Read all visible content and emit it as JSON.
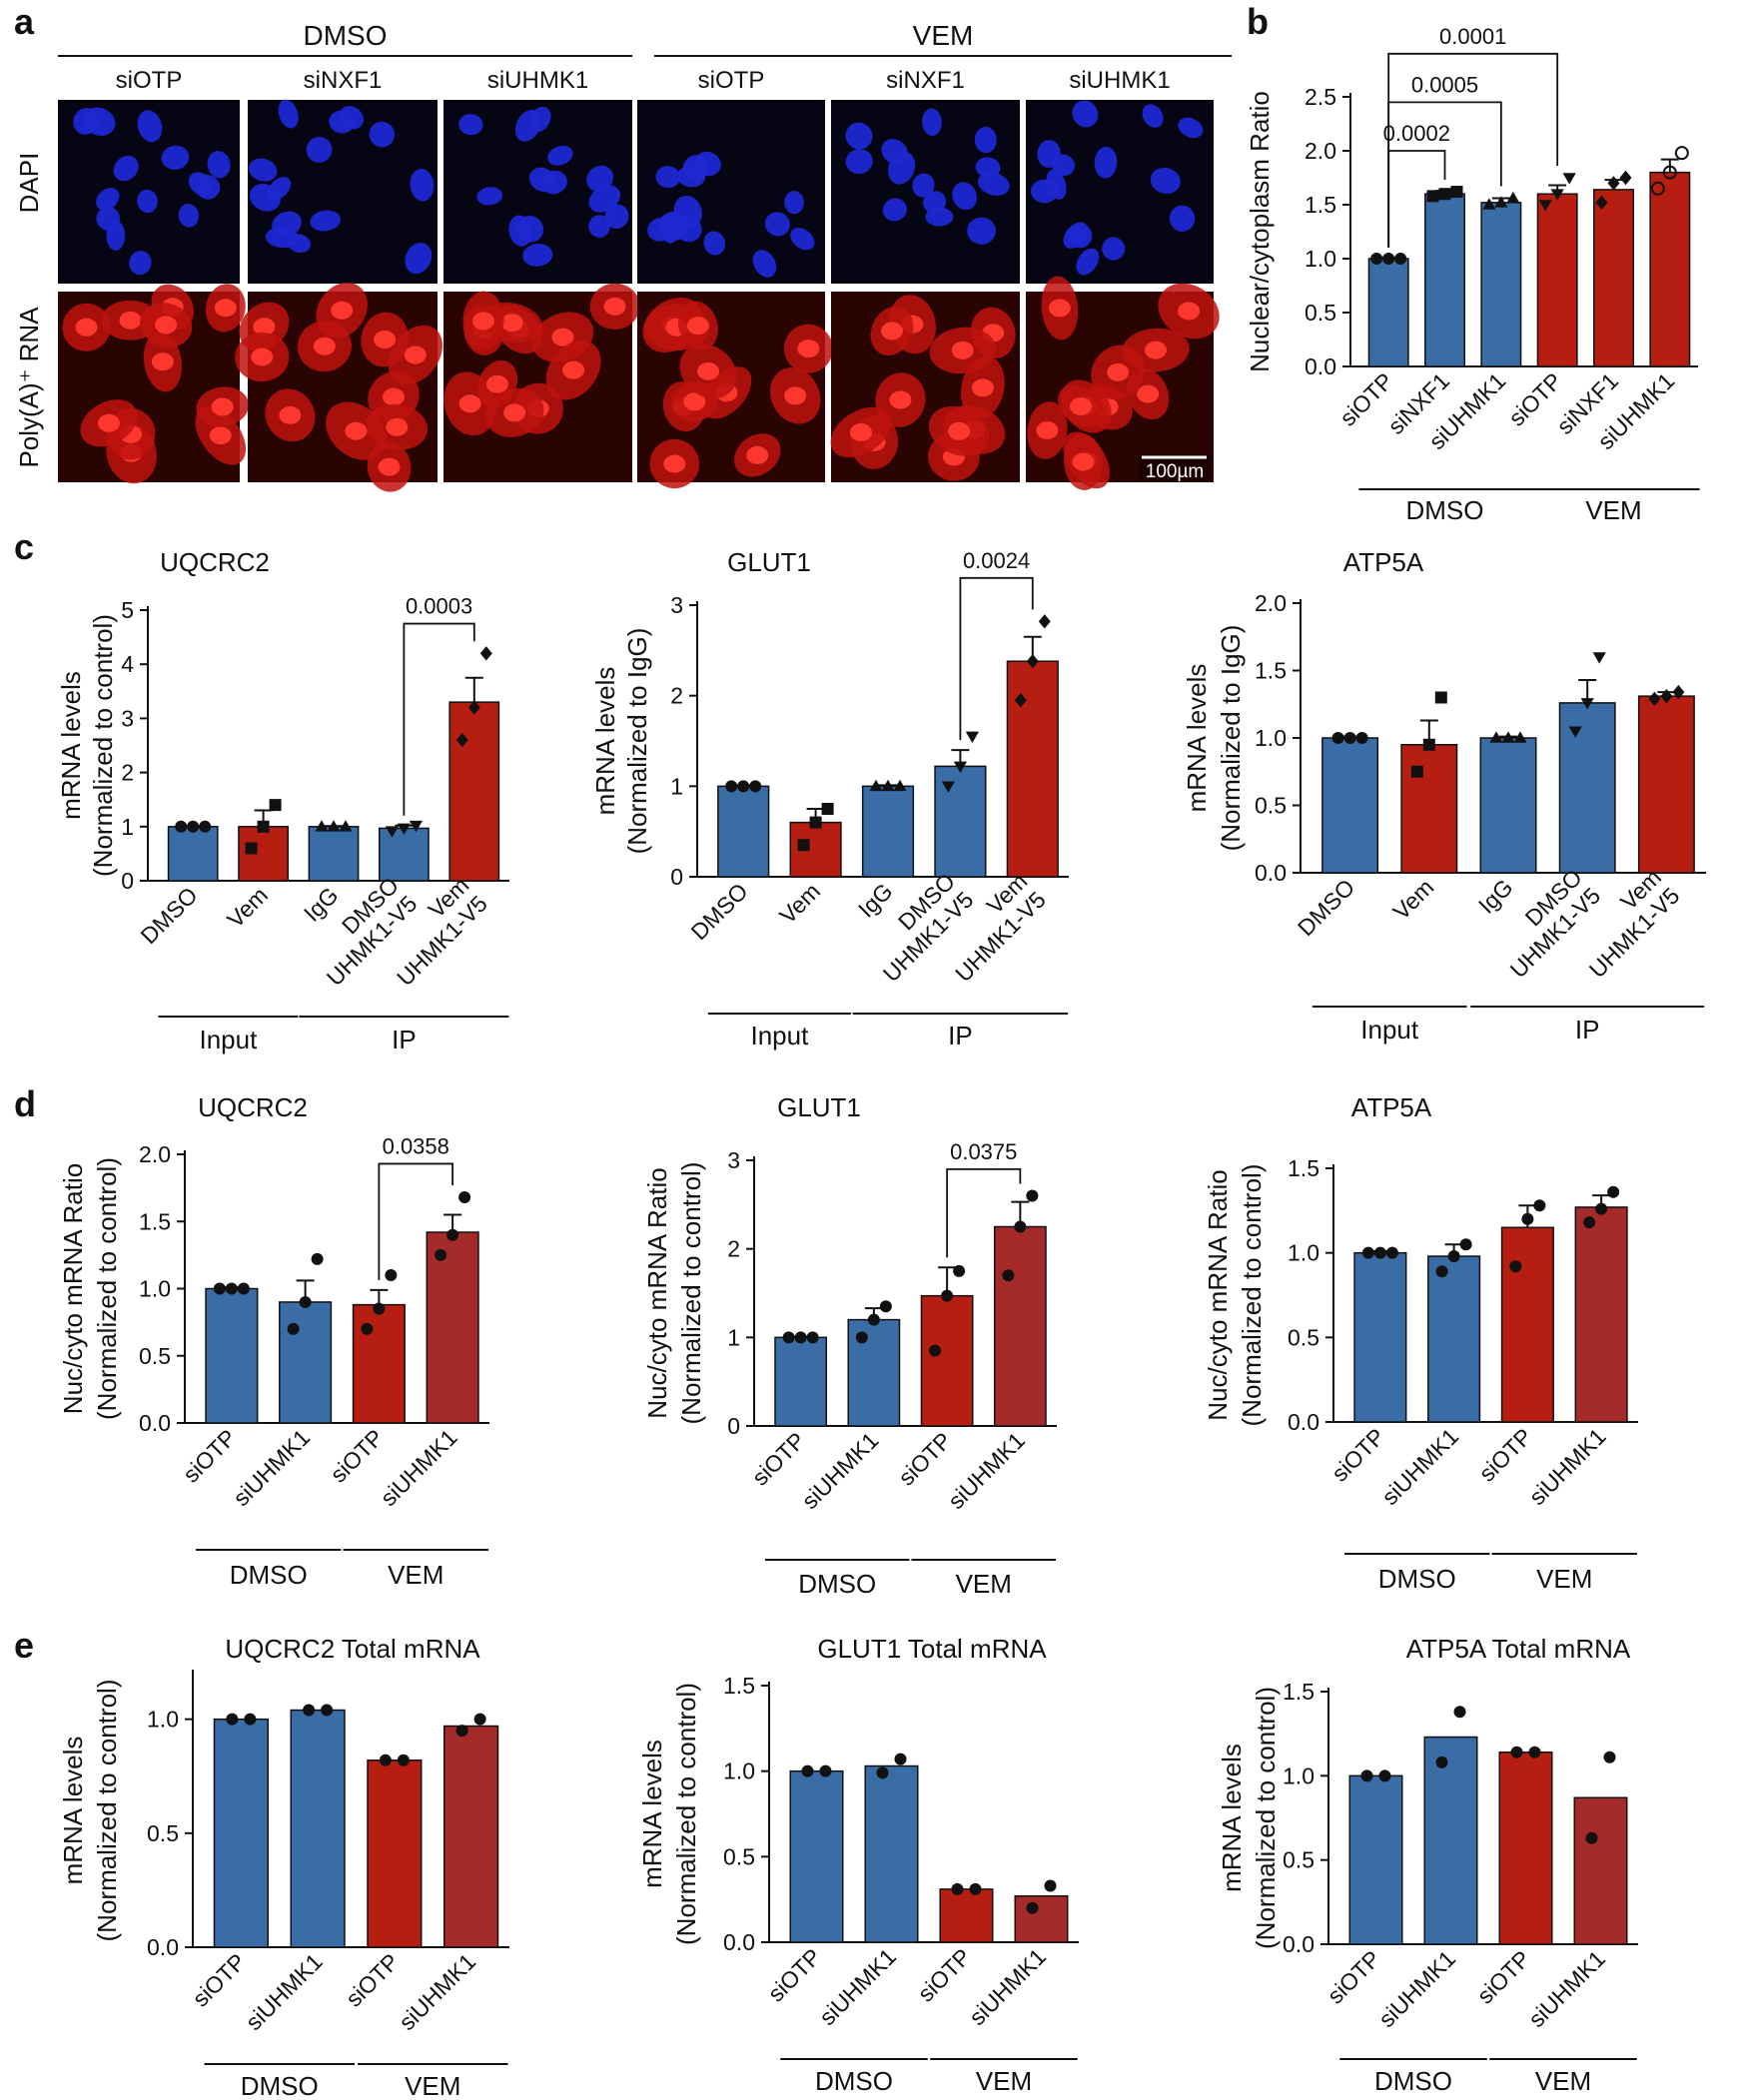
{
  "figure": {
    "panel_labels": [
      "a",
      "b",
      "c",
      "d",
      "e"
    ],
    "scale_bar": "100µm"
  },
  "colors": {
    "blue": "#3A6CA6",
    "red": "#B61E12",
    "darkred": "#A52A2A",
    "dapi_bg": "#050514",
    "dapi_nuclei": "#1E28D2",
    "polya_bg": "#2A0303",
    "polya_cell": "#C0130E",
    "polya_nuc": "#FF3A30"
  },
  "panel_a": {
    "groups": [
      "DMSO",
      "VEM"
    ],
    "columns": [
      "siOTP",
      "siNXF1",
      "siUHMK1",
      "siOTP",
      "siNXF1",
      "siUHMK1"
    ],
    "rows": [
      "DAPI",
      "Poly(A)⁺ RNA"
    ]
  },
  "chart_data": [
    {
      "id": "b",
      "type": "bar",
      "title": "",
      "ylabel": "Nuclear/cytoplasm Ratio",
      "xlabel": "",
      "ylim": [
        0,
        2.5
      ],
      "yticks": [
        "0.0",
        "0.5",
        "1.0",
        "1.5",
        "2.0",
        "2.5"
      ],
      "categories": [
        "siOTP",
        "siNXF1",
        "siUHMK1",
        "siOTP",
        "siNXF1",
        "siUHMK1"
      ],
      "values": [
        1.0,
        1.6,
        1.52,
        1.6,
        1.64,
        1.8
      ],
      "errors": [
        0.01,
        0.03,
        0.04,
        0.08,
        0.09,
        0.12
      ],
      "points": [
        [
          1.0,
          1.0,
          1.0
        ],
        [
          1.58,
          1.6,
          1.62
        ],
        [
          1.5,
          1.52,
          1.56
        ],
        [
          1.5,
          1.6,
          1.75
        ],
        [
          1.52,
          1.7,
          1.75
        ],
        [
          1.65,
          1.8,
          1.98
        ]
      ],
      "markers": [
        "circle",
        "square",
        "triangle-up",
        "triangle-down",
        "diamond",
        "circle-open"
      ],
      "colors": [
        "blue",
        "blue",
        "blue",
        "red",
        "red",
        "red"
      ],
      "groups": [
        {
          "label": "DMSO",
          "from": 0,
          "to": 2
        },
        {
          "label": "VEM",
          "from": 3,
          "to": 5
        }
      ],
      "brackets": [
        {
          "from": 0,
          "to": 1,
          "label": "0.0002",
          "y": 2.0
        },
        {
          "from": 0,
          "to": 2,
          "label": "0.0005",
          "y": 2.45
        },
        {
          "from": 0,
          "to": 3,
          "label": "0.0001",
          "y": 2.9
        }
      ]
    },
    {
      "id": "c1",
      "type": "bar",
      "title": "UQCRC2",
      "ylabel": "mRNA levels",
      "ylabel2": "(Normalized to control)",
      "ylim": [
        0,
        5
      ],
      "yticks": [
        "0",
        "1",
        "2",
        "3",
        "4",
        "5"
      ],
      "categories": [
        "DMSO",
        "Vem",
        "IgG",
        "DMSO\nUHMK1-V5",
        "Vem\nUHMK1-V5"
      ],
      "values": [
        1.0,
        1.0,
        1.0,
        0.97,
        3.3
      ],
      "errors": [
        0.01,
        0.3,
        0.01,
        0.05,
        0.45
      ],
      "points": [
        [
          1.0,
          1.0,
          1.0
        ],
        [
          0.6,
          1.0,
          1.4
        ],
        [
          1.0,
          1.0,
          1.0
        ],
        [
          0.92,
          0.97,
          1.02
        ],
        [
          2.6,
          3.2,
          4.2
        ]
      ],
      "markers": [
        "circle",
        "square",
        "triangle-up",
        "triangle-down",
        "diamond"
      ],
      "colors": [
        "blue",
        "red",
        "blue",
        "blue",
        "red"
      ],
      "groups": [
        {
          "label": "Input",
          "from": 0,
          "to": 1
        },
        {
          "label": "IP",
          "from": 2,
          "to": 4
        }
      ],
      "brackets": [
        {
          "from": 3,
          "to": 4,
          "label": "0.0003",
          "y": 4.75
        }
      ]
    },
    {
      "id": "c2",
      "type": "bar",
      "title": "GLUT1",
      "ylabel": "mRNA levels",
      "ylabel2": "(Normalized to IgG)",
      "ylim": [
        0,
        3
      ],
      "yticks": [
        "0",
        "1",
        "2",
        "3"
      ],
      "categories": [
        "DMSO",
        "Vem",
        "IgG",
        "DMSO\nUHMK1-V5",
        "Vem\nUHMK1-V5"
      ],
      "values": [
        1.0,
        0.6,
        1.0,
        1.22,
        2.38
      ],
      "errors": [
        0.01,
        0.15,
        0.01,
        0.18,
        0.27
      ],
      "points": [
        [
          1.0,
          1.0,
          1.0
        ],
        [
          0.35,
          0.6,
          0.75
        ],
        [
          1.0,
          1.0,
          1.0
        ],
        [
          1.0,
          1.22,
          1.55
        ],
        [
          1.95,
          2.38,
          2.82
        ]
      ],
      "markers": [
        "circle",
        "square",
        "triangle-up",
        "triangle-down",
        "diamond"
      ],
      "colors": [
        "blue",
        "red",
        "blue",
        "blue",
        "red"
      ],
      "groups": [
        {
          "label": "Input",
          "from": 0,
          "to": 1
        },
        {
          "label": "IP",
          "from": 2,
          "to": 4
        }
      ],
      "brackets": [
        {
          "from": 3,
          "to": 4,
          "label": "0.0024",
          "y": 3.3
        }
      ]
    },
    {
      "id": "c3",
      "type": "bar",
      "title": "ATP5A",
      "ylabel": "mRNA levels",
      "ylabel2": "(Normalized to IgG)",
      "ylim": [
        0,
        2.0
      ],
      "yticks": [
        "0.0",
        "0.5",
        "1.0",
        "1.5",
        "2.0"
      ],
      "categories": [
        "DMSO",
        "Vem",
        "IgG",
        "DMSO\nUHMK1-V5",
        "Vem\nUHMK1-V5"
      ],
      "values": [
        1.0,
        0.95,
        1.0,
        1.26,
        1.31
      ],
      "errors": [
        0.01,
        0.18,
        0.01,
        0.17,
        0.03
      ],
      "points": [
        [
          1.0,
          1.0,
          1.0
        ],
        [
          0.75,
          0.95,
          1.3
        ],
        [
          1.0,
          1.0,
          1.0
        ],
        [
          1.05,
          1.26,
          1.6
        ],
        [
          1.29,
          1.31,
          1.34
        ]
      ],
      "markers": [
        "circle",
        "square",
        "triangle-up",
        "triangle-down",
        "diamond"
      ],
      "colors": [
        "blue",
        "red",
        "blue",
        "blue",
        "red"
      ],
      "groups": [
        {
          "label": "Input",
          "from": 0,
          "to": 1
        },
        {
          "label": "IP",
          "from": 2,
          "to": 4
        }
      ],
      "brackets": []
    },
    {
      "id": "d1",
      "type": "bar",
      "title": "UQCRC2",
      "ylabel": "Nuc/cyto mRNA Ratio",
      "ylabel2": "(Normalized to control)",
      "ylim": [
        0,
        2.0
      ],
      "yticks": [
        "0.0",
        "0.5",
        "1.0",
        "1.5",
        "2.0"
      ],
      "categories": [
        "siOTP",
        "siUHMK1",
        "siOTP",
        "siUHMK1"
      ],
      "values": [
        1.0,
        0.9,
        0.88,
        1.42
      ],
      "errors": [
        0.01,
        0.16,
        0.11,
        0.13
      ],
      "points": [
        [
          1.0,
          1.0,
          1.0
        ],
        [
          0.7,
          0.9,
          1.22
        ],
        [
          0.7,
          0.85,
          1.1
        ],
        [
          1.25,
          1.4,
          1.68
        ]
      ],
      "markers": [
        "circle",
        "circle",
        "circle",
        "circle"
      ],
      "colors": [
        "blue",
        "blue",
        "red",
        "darkred"
      ],
      "groups": [
        {
          "label": "DMSO",
          "from": 0,
          "to": 1
        },
        {
          "label": "VEM",
          "from": 2,
          "to": 3
        }
      ],
      "brackets": [
        {
          "from": 2,
          "to": 3,
          "label": "0.0358",
          "y": 1.93
        }
      ]
    },
    {
      "id": "d2",
      "type": "bar",
      "title": "GLUT1",
      "ylabel": "Nuc/cyto mRNA Ratio",
      "ylabel2": "(Normalized to control)",
      "ylim": [
        0,
        3
      ],
      "yticks": [
        "0",
        "1",
        "2",
        "3"
      ],
      "categories": [
        "siOTP",
        "siUHMK1",
        "siOTP",
        "siUHMK1"
      ],
      "values": [
        1.0,
        1.2,
        1.47,
        2.25
      ],
      "errors": [
        0.01,
        0.13,
        0.32,
        0.28
      ],
      "points": [
        [
          1.0,
          1.0,
          1.0
        ],
        [
          1.0,
          1.2,
          1.35
        ],
        [
          0.85,
          1.47,
          1.75
        ],
        [
          1.7,
          2.25,
          2.6
        ]
      ],
      "markers": [
        "circle",
        "circle",
        "circle",
        "circle"
      ],
      "colors": [
        "blue",
        "blue",
        "red",
        "darkred"
      ],
      "groups": [
        {
          "label": "DMSO",
          "from": 0,
          "to": 1
        },
        {
          "label": "VEM",
          "from": 2,
          "to": 3
        }
      ],
      "brackets": [
        {
          "from": 2,
          "to": 3,
          "label": "0.0375",
          "y": 2.9
        }
      ]
    },
    {
      "id": "d3",
      "type": "bar",
      "title": "ATP5A",
      "ylabel": "Nuc/cyto mRNA Ratio",
      "ylabel2": "(Normalized to control)",
      "ylim": [
        0,
        1.5
      ],
      "yticks": [
        "0.0",
        "0.5",
        "1.0",
        "1.5"
      ],
      "categories": [
        "siOTP",
        "siUHMK1",
        "siOTP",
        "siUHMK1"
      ],
      "values": [
        1.0,
        0.98,
        1.15,
        1.27
      ],
      "errors": [
        0.01,
        0.07,
        0.13,
        0.07
      ],
      "points": [
        [
          1.0,
          1.0,
          1.0
        ],
        [
          0.89,
          0.98,
          1.05
        ],
        [
          0.92,
          1.2,
          1.28
        ],
        [
          1.18,
          1.26,
          1.36
        ]
      ],
      "markers": [
        "circle",
        "circle",
        "circle",
        "circle"
      ],
      "colors": [
        "blue",
        "blue",
        "red",
        "darkred"
      ],
      "groups": [
        {
          "label": "DMSO",
          "from": 0,
          "to": 1
        },
        {
          "label": "VEM",
          "from": 2,
          "to": 3
        }
      ],
      "brackets": []
    },
    {
      "id": "e1",
      "type": "bar",
      "title": "UQCRC2 Total mRNA",
      "ylabel": "mRNA levels",
      "ylabel2": "(Normalized to control)",
      "ylim": [
        0,
        1.2
      ],
      "yticks": [
        "0.0",
        "0.5",
        "1.0"
      ],
      "categories": [
        "siOTP",
        "siUHMK1",
        "siOTP",
        "siUHMK1"
      ],
      "values": [
        1.0,
        1.04,
        0.82,
        0.97
      ],
      "errors": [
        0,
        0,
        0,
        0
      ],
      "points": [
        [
          1.0,
          1.0
        ],
        [
          1.04,
          1.04
        ],
        [
          0.82,
          0.82
        ],
        [
          0.95,
          1.0
        ]
      ],
      "markers": [
        "circle",
        "circle",
        "circle",
        "circle"
      ],
      "colors": [
        "blue",
        "blue",
        "red",
        "darkred"
      ],
      "groups": [
        {
          "label": "DMSO",
          "from": 0,
          "to": 1
        },
        {
          "label": "VEM",
          "from": 2,
          "to": 3
        }
      ],
      "brackets": []
    },
    {
      "id": "e2",
      "type": "bar",
      "title": "GLUT1 Total mRNA",
      "ylabel": "mRNA levels",
      "ylabel2": "(Normalized to control)",
      "ylim": [
        0,
        1.5
      ],
      "yticks": [
        "0.0",
        "0.5",
        "1.0",
        "1.5"
      ],
      "categories": [
        "siOTP",
        "siUHMK1",
        "siOTP",
        "siUHMK1"
      ],
      "values": [
        1.0,
        1.03,
        0.31,
        0.27
      ],
      "errors": [
        0,
        0,
        0,
        0
      ],
      "points": [
        [
          1.0,
          1.0
        ],
        [
          0.99,
          1.07
        ],
        [
          0.31,
          0.31
        ],
        [
          0.2,
          0.33
        ]
      ],
      "markers": [
        "circle",
        "circle",
        "circle",
        "circle"
      ],
      "colors": [
        "blue",
        "blue",
        "red",
        "darkred"
      ],
      "groups": [
        {
          "label": "DMSO",
          "from": 0,
          "to": 1
        },
        {
          "label": "VEM",
          "from": 2,
          "to": 3
        }
      ],
      "brackets": []
    },
    {
      "id": "e3",
      "type": "bar",
      "title": "ATP5A Total mRNA",
      "ylabel": "mRNA levels",
      "ylabel2": "(Normalized to control)",
      "ylim": [
        0,
        1.5
      ],
      "yticks": [
        "0.0",
        "0.5",
        "1.0",
        "1.5"
      ],
      "categories": [
        "siOTP",
        "siUHMK1",
        "siOTP",
        "siUHMK1"
      ],
      "values": [
        1.0,
        1.23,
        1.14,
        0.87
      ],
      "errors": [
        0,
        0,
        0,
        0
      ],
      "points": [
        [
          1.0,
          1.0
        ],
        [
          1.08,
          1.38
        ],
        [
          1.14,
          1.14
        ],
        [
          0.63,
          1.11
        ]
      ],
      "markers": [
        "circle",
        "circle",
        "circle",
        "circle"
      ],
      "colors": [
        "blue",
        "blue",
        "red",
        "darkred"
      ],
      "groups": [
        {
          "label": "DMSO",
          "from": 0,
          "to": 1
        },
        {
          "label": "VEM",
          "from": 2,
          "to": 3
        }
      ],
      "brackets": []
    }
  ]
}
